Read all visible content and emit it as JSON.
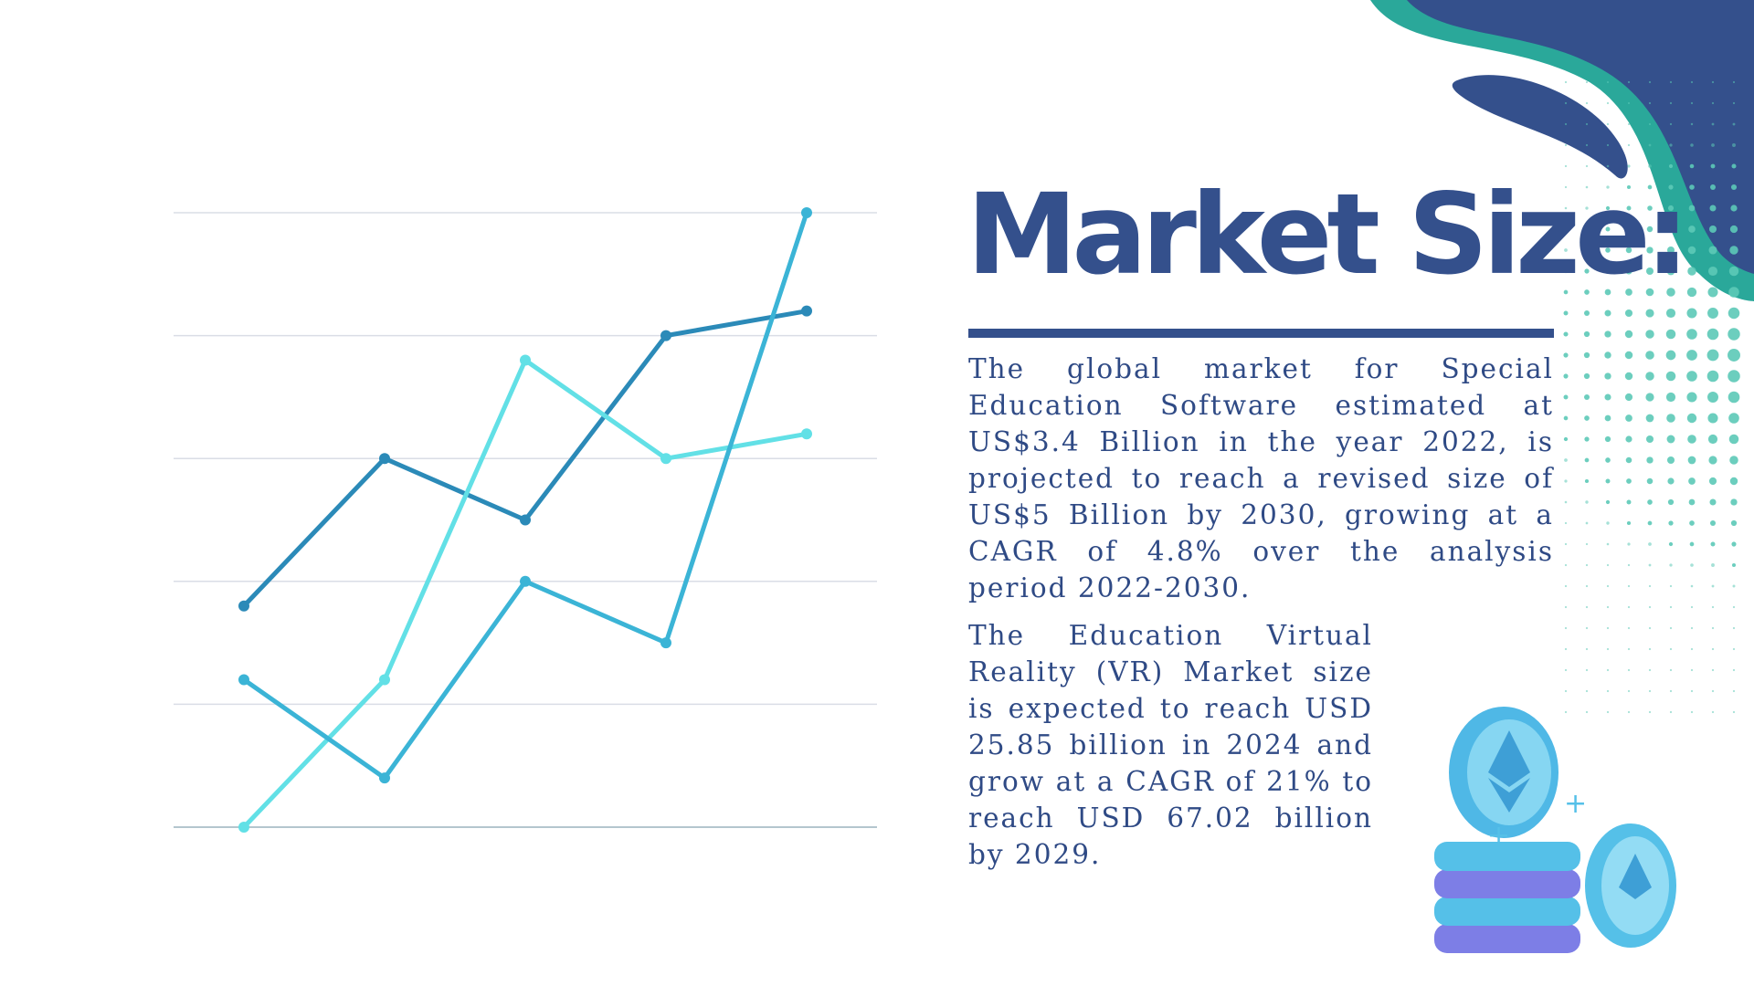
{
  "heading": {
    "title": "Market Size:"
  },
  "paragraphs": [
    "The global market for Special Education Software estimated at US$3.4 Billion in the year 2022, is projected to reach a revised size of US$5 Billion by 2030, growing at a CAGR of 4.8% over the analysis period 2022-2030.",
    "The Education Virtual Reality (VR) Market size is expected to reach USD 25.85 billion in 2024 and grow at a CAGR of 21% to reach USD 67.02 billion by 2029."
  ],
  "colors": {
    "primary_navy": "#34508c",
    "teal_accent": "#2aa89a",
    "dot_teal": "#5cc9b7",
    "gridline": "#dadde6",
    "coin_blue": "#55c0e8",
    "coin_purple": "#7d7ee6"
  },
  "decorations": {
    "top_right": "wave-blob",
    "dots": "halftone-dot-pattern",
    "bottom_right": "coin-stack-illustration"
  },
  "chart_data": {
    "type": "line",
    "x": [
      1,
      2,
      3,
      4,
      5
    ],
    "ylim": [
      0,
      5
    ],
    "grid": true,
    "gridlines": 6,
    "series": [
      {
        "values": [
          1.8,
          3.0,
          2.5,
          4.0,
          4.2
        ],
        "color": "#2b8ab8"
      },
      {
        "values": [
          0.0,
          1.2,
          3.8,
          3.0,
          3.2
        ],
        "color": "#62e0e6"
      },
      {
        "values": [
          1.2,
          0.4,
          2.0,
          1.5,
          5.0
        ],
        "color": "#3bb4d6"
      }
    ]
  }
}
